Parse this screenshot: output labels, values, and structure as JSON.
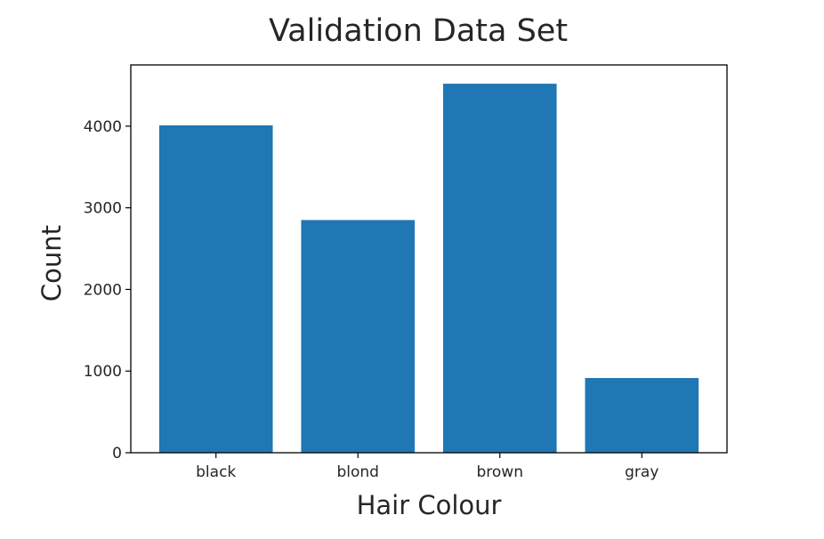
{
  "chart_data": {
    "type": "bar",
    "title": "Validation Data Set",
    "xlabel": "Hair Colour",
    "ylabel": "Count",
    "categories": [
      "black",
      "blond",
      "brown",
      "gray"
    ],
    "values": [
      4010,
      2850,
      4520,
      915
    ],
    "ylim": [
      0,
      4750
    ],
    "yticks": [
      0,
      1000,
      2000,
      3000,
      4000
    ],
    "bar_color": "#1f77b4",
    "grid": false,
    "legend": "none"
  }
}
